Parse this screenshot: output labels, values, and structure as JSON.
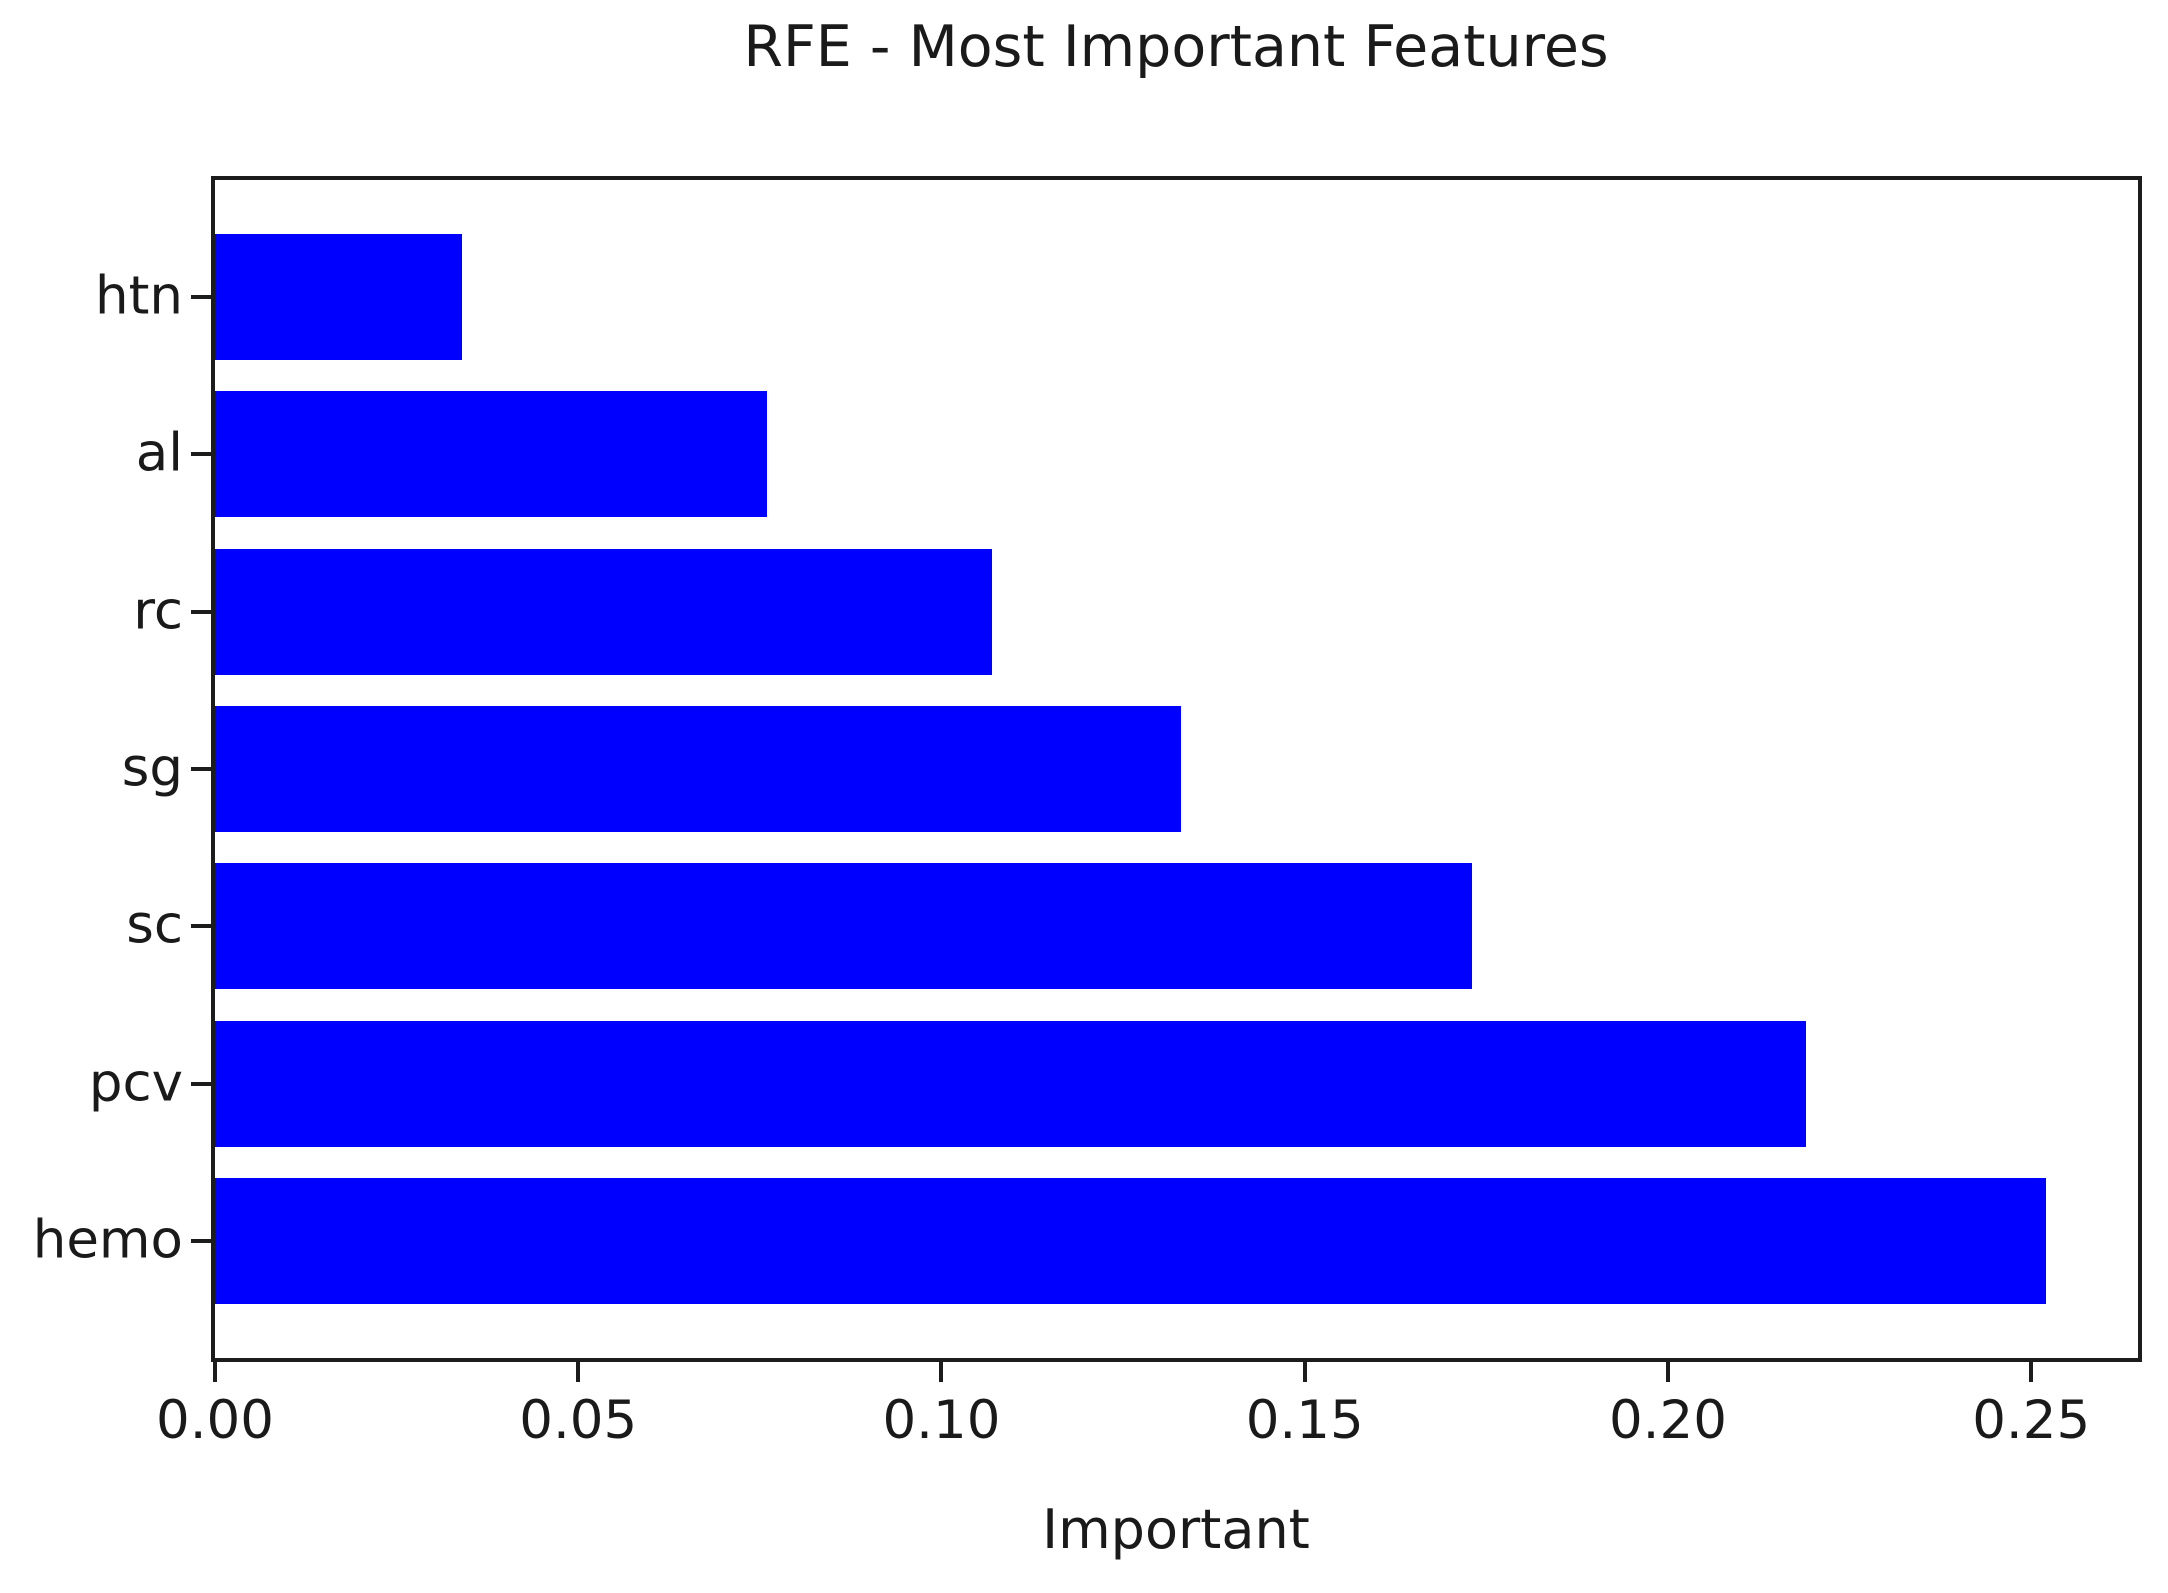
{
  "chart_data": {
    "type": "bar",
    "orientation": "horizontal",
    "title": "RFE - Most Important Features",
    "xlabel": "Important",
    "ylabel": "",
    "categories_order": "top-to-bottom",
    "categories": [
      "htn",
      "al",
      "rc",
      "sg",
      "sc",
      "pcv",
      "hemo"
    ],
    "values": [
      0.034,
      0.076,
      0.107,
      0.133,
      0.173,
      0.219,
      0.252
    ],
    "x_tick_labels": [
      "0.00",
      "0.05",
      "0.10",
      "0.15",
      "0.20",
      "0.25"
    ],
    "x_tick_values": [
      0,
      0.05,
      0.1,
      0.15,
      0.2,
      0.25
    ],
    "xlim": [
      0,
      0.2647
    ],
    "grid": false,
    "legend": false,
    "bar_color": "#0000ff",
    "axis_color": "#1c1c1c",
    "text_color": "#1a1a1a",
    "background_color": "#ffffff"
  }
}
